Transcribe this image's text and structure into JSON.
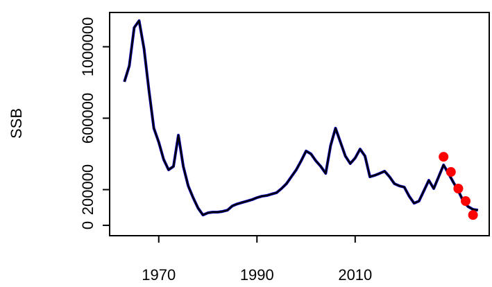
{
  "chart_data": {
    "type": "line",
    "y_label": "SSB",
    "x": [
      1963,
      1964,
      1965,
      1966,
      1967,
      1968,
      1969,
      1970,
      1971,
      1972,
      1973,
      1974,
      1975,
      1976,
      1977,
      1978,
      1979,
      1980,
      1981,
      1982,
      1983,
      1984,
      1985,
      1986,
      1987,
      1988,
      1989,
      1990,
      1991,
      1992,
      1993,
      1994,
      1995,
      1996,
      1997,
      1998,
      1999,
      2000,
      2001,
      2002,
      2003,
      2004,
      2005,
      2006,
      2007,
      2008,
      2009,
      2010,
      2011,
      2012,
      2013,
      2014,
      2015,
      2016,
      2017,
      2018,
      2019,
      2020,
      2021,
      2022,
      2023,
      2024,
      2025,
      2026,
      2027,
      2028,
      2029,
      2030,
      2031,
      2032,
      2033,
      2034,
      2035
    ],
    "series": [
      {
        "color": "#0000cc",
        "values": [
          804000,
          893000,
          1107000,
          1146000,
          990000,
          757000,
          544000,
          466000,
          369000,
          311000,
          330000,
          505000,
          330000,
          221000,
          155000,
          97000,
          58000,
          70000,
          74000,
          74000,
          78000,
          85000,
          109000,
          120000,
          128000,
          136000,
          144000,
          155000,
          163000,
          167000,
          175000,
          183000,
          206000,
          233000,
          272000,
          311000,
          361000,
          416000,
          400000,
          361000,
          330000,
          291000,
          447000,
          544000,
          466000,
          388000,
          346000,
          377000,
          427000,
          388000,
          272000,
          280000,
          291000,
          303000,
          272000,
          233000,
          221000,
          214000,
          163000,
          124000,
          136000,
          194000,
          252000,
          206000,
          272000,
          338000,
          291000,
          241000,
          194000,
          136000,
          105000,
          89000,
          85000
        ]
      },
      {
        "color": "#000000",
        "values": [
          804000,
          893000,
          1107000,
          1146000,
          990000,
          757000,
          544000,
          466000,
          369000,
          311000,
          330000,
          505000,
          330000,
          221000,
          155000,
          97000,
          58000,
          70000,
          74000,
          74000,
          78000,
          85000,
          109000,
          120000,
          128000,
          136000,
          144000,
          155000,
          163000,
          167000,
          175000,
          183000,
          206000,
          233000,
          272000,
          311000,
          361000,
          416000,
          400000,
          361000,
          330000,
          291000,
          447000,
          544000,
          466000,
          388000,
          346000,
          377000,
          427000,
          388000,
          272000,
          280000,
          291000,
          303000,
          272000,
          233000,
          221000,
          214000,
          163000,
          124000,
          136000,
          194000,
          252000,
          206000,
          272000,
          338000,
          291000,
          241000,
          194000,
          136000,
          105000,
          89000,
          85000
        ]
      }
    ],
    "points": {
      "color": "#ff0000",
      "x": [
        2028,
        2029.5,
        2031,
        2032.5,
        2034
      ],
      "values": [
        384000,
        299000,
        206000,
        136000,
        58000
      ]
    },
    "xlim": [
      1960,
      2037.3
    ],
    "ylim": [
      -58000,
      1192000
    ],
    "xticks": [
      1970,
      1990,
      2010
    ],
    "yticks": [
      0,
      200000,
      600000,
      1000000
    ]
  }
}
